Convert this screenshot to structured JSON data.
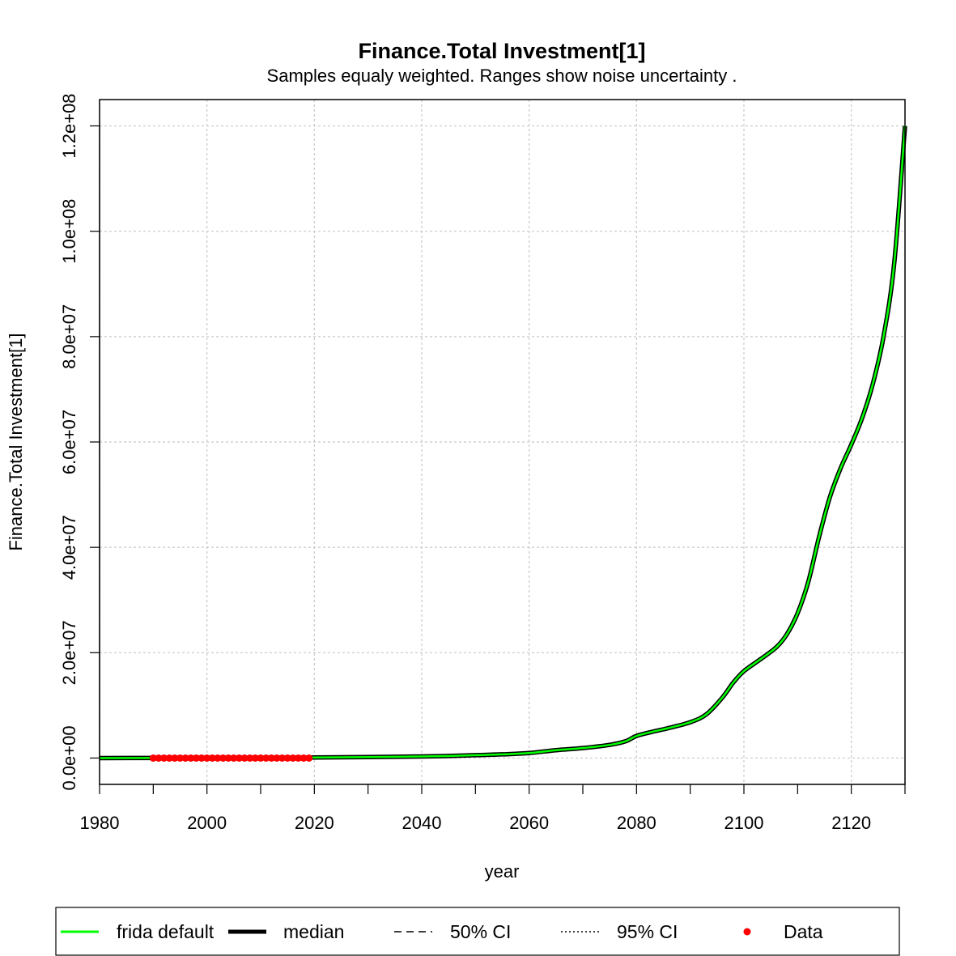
{
  "chart_data": {
    "type": "line",
    "title": "Finance.Total Investment[1]",
    "subtitle": "Samples equaly weighted. Ranges show  noise uncertainty .",
    "xlabel": "year",
    "ylabel": "Finance.Total Investment[1]",
    "xlim": [
      1980,
      2130
    ],
    "ylim": [
      -5000000,
      125000000
    ],
    "x_ticks": [
      1980,
      2000,
      2020,
      2040,
      2060,
      2080,
      2100,
      2120
    ],
    "x_tick_labels": [
      "1980",
      "2000",
      "2020",
      "2040",
      "2060",
      "2080",
      "2100",
      "2120"
    ],
    "y_ticks": [
      0,
      20000000,
      40000000,
      60000000,
      80000000,
      100000000,
      120000000
    ],
    "y_tick_labels": [
      "0.0e+00",
      "2.0e+07",
      "4.0e+07",
      "6.0e+07",
      "8.0e+07",
      "1.0e+08",
      "1.2e+08"
    ],
    "grid": true,
    "legend_position": "bottom",
    "series": [
      {
        "name": "frida default",
        "color": "#00ff00",
        "points": [
          [
            1980,
            0
          ],
          [
            1990,
            10000
          ],
          [
            2000,
            30000
          ],
          [
            2010,
            60000
          ],
          [
            2020,
            100000
          ],
          [
            2030,
            180000
          ],
          [
            2040,
            300000
          ],
          [
            2045,
            400000
          ],
          [
            2050,
            550000
          ],
          [
            2055,
            700000
          ],
          [
            2060,
            950000
          ],
          [
            2065,
            1500000
          ],
          [
            2070,
            1900000
          ],
          [
            2075,
            2500000
          ],
          [
            2078,
            3200000
          ],
          [
            2080,
            4200000
          ],
          [
            2083,
            5000000
          ],
          [
            2086,
            5700000
          ],
          [
            2090,
            6800000
          ],
          [
            2093,
            8300000
          ],
          [
            2096,
            11500000
          ],
          [
            2098,
            14300000
          ],
          [
            2100,
            16500000
          ],
          [
            2103,
            18700000
          ],
          [
            2106,
            21000000
          ],
          [
            2108,
            23500000
          ],
          [
            2110,
            27500000
          ],
          [
            2112,
            33500000
          ],
          [
            2114,
            42000000
          ],
          [
            2116,
            49500000
          ],
          [
            2118,
            55000000
          ],
          [
            2120,
            59500000
          ],
          [
            2122,
            64500000
          ],
          [
            2124,
            71000000
          ],
          [
            2126,
            80000000
          ],
          [
            2128,
            94000000
          ],
          [
            2130,
            120000000
          ]
        ]
      },
      {
        "name": "median",
        "color": "#000000"
      },
      {
        "name": "50% CI",
        "color": "#000000"
      },
      {
        "name": "95% CI",
        "color": "#000000"
      }
    ],
    "data_points": {
      "name": "Data",
      "color": "#ff0000",
      "x": [
        1990,
        1991,
        1992,
        1993,
        1994,
        1995,
        1996,
        1997,
        1998,
        1999,
        2000,
        2001,
        2002,
        2003,
        2004,
        2005,
        2006,
        2007,
        2008,
        2009,
        2010,
        2011,
        2012,
        2013,
        2014,
        2015,
        2016,
        2017,
        2018,
        2019
      ],
      "y": [
        0,
        0,
        0,
        0,
        0,
        0,
        0,
        0,
        0,
        0,
        0,
        0,
        0,
        0,
        0,
        0,
        0,
        0,
        0,
        0,
        0,
        0,
        0,
        0,
        0,
        0,
        0,
        0,
        0,
        0
      ]
    },
    "legend": [
      "frida default",
      "median",
      "50% CI",
      "95% CI",
      "Data"
    ]
  }
}
